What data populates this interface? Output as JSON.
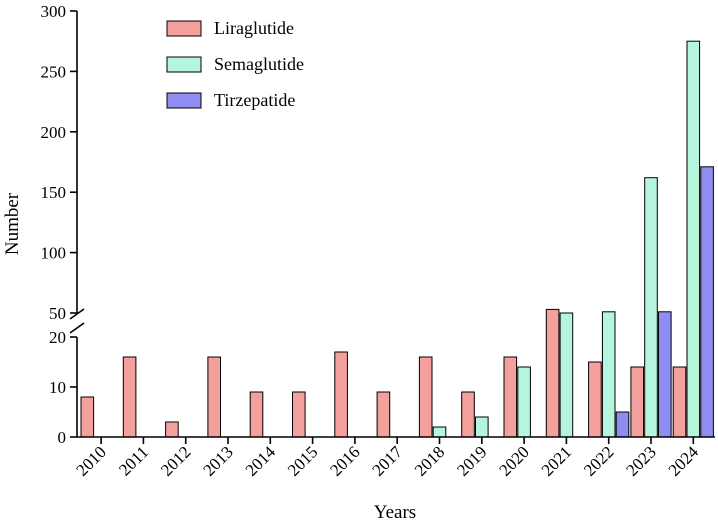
{
  "chart_data": {
    "type": "bar",
    "title": "",
    "xlabel": "Years",
    "ylabel": "Number",
    "categories": [
      "2010",
      "2011",
      "2012",
      "2013",
      "2014",
      "2015",
      "2016",
      "2017",
      "2018",
      "2019",
      "2020",
      "2021",
      "2022",
      "2023",
      "2024"
    ],
    "series": [
      {
        "name": "Liraglutide",
        "color": "#F4A09C",
        "values": [
          8,
          16,
          3,
          16,
          9,
          9,
          17,
          9,
          16,
          9,
          16,
          53,
          15,
          14,
          14
        ]
      },
      {
        "name": "Semaglutide",
        "color": "#B5F5DD",
        "values": [
          0,
          0,
          0,
          0,
          0,
          0,
          0,
          0,
          2,
          4,
          14,
          43,
          51,
          162,
          275
        ]
      },
      {
        "name": "Tirzepatide",
        "color": "#8F8CF2",
        "values": [
          0,
          0,
          0,
          0,
          0,
          0,
          0,
          0,
          0,
          0,
          0,
          0,
          5,
          51,
          171
        ]
      }
    ],
    "axis_break": {
      "lower_range": [
        0,
        20
      ],
      "upper_range": [
        50,
        300
      ]
    },
    "lower_ticks": [
      0,
      10,
      20
    ],
    "upper_ticks": [
      50,
      100,
      150,
      200,
      250,
      300
    ],
    "legend_position": "top-left",
    "grid": false
  }
}
